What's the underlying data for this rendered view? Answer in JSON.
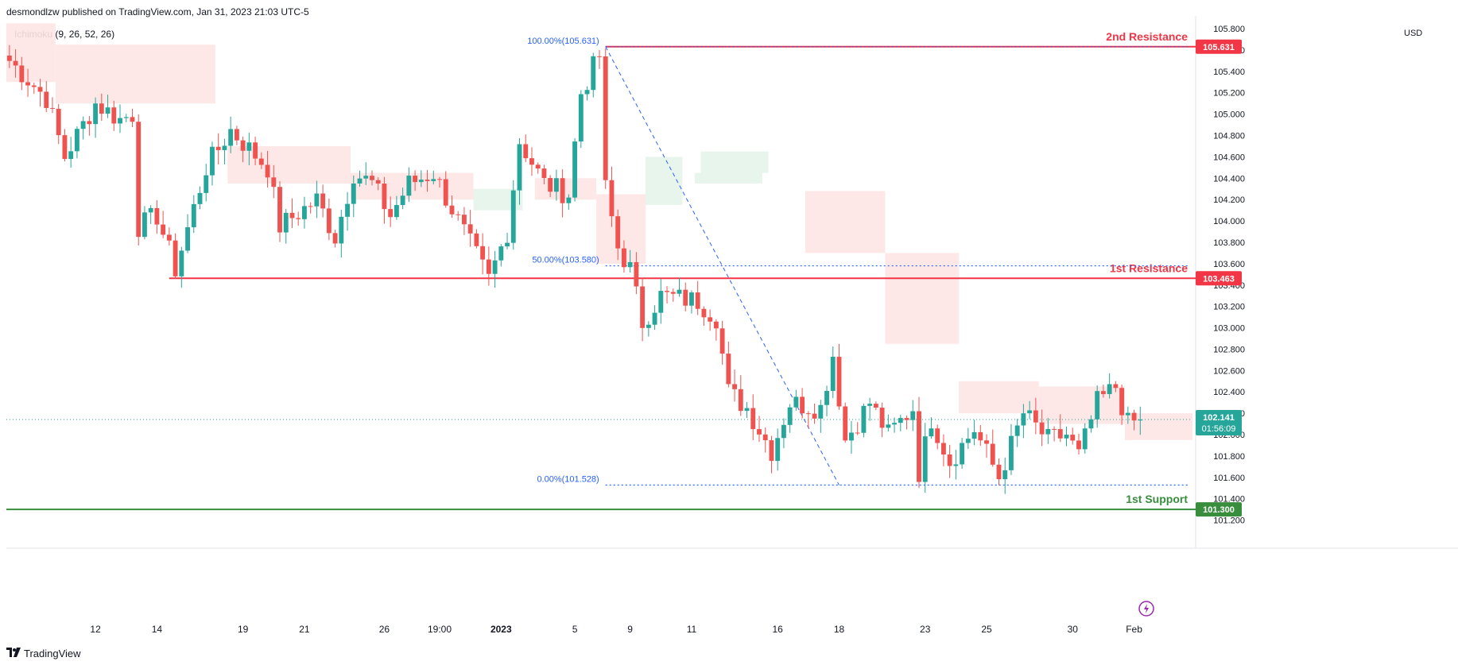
{
  "header": {
    "publisher": "desmondlzw published on TradingView.com, Jan 31, 2023 21:03 UTC-5"
  },
  "indicator": {
    "label": "Ichimoku (9, 26, 52, 26)"
  },
  "footer": {
    "brand": "TradingView",
    "logo_icon": "tradingview-logo-icon"
  },
  "colors": {
    "up": "#26a69a",
    "down": "#ef5350",
    "resistance": "#f23645",
    "support": "#388e3c",
    "fib": "#2962ff",
    "cloud_bear": "#fde4e4",
    "cloud_bull": "#e6f4ea",
    "grid": "#e0e3eb",
    "price_tag": "#26a69a"
  },
  "chart_data": {
    "type": "candlestick",
    "currency": "USD",
    "ylim": [
      101.2,
      105.9
    ],
    "y_ticks": [
      "105.800",
      "105.600",
      "105.400",
      "105.200",
      "105.000",
      "104.800",
      "104.600",
      "104.400",
      "104.200",
      "104.000",
      "103.800",
      "103.600",
      "103.400",
      "103.200",
      "103.000",
      "102.800",
      "102.600",
      "102.400",
      "102.200",
      "102.000",
      "101.800",
      "101.600",
      "101.400",
      "101.200"
    ],
    "x_ticks": [
      {
        "label": "12",
        "bar": 14,
        "bold": false
      },
      {
        "label": "14",
        "bar": 24,
        "bold": false
      },
      {
        "label": "19",
        "bar": 38,
        "bold": false
      },
      {
        "label": "21",
        "bar": 48,
        "bold": false
      },
      {
        "label": "26",
        "bar": 61,
        "bold": false
      },
      {
        "label": "19:00",
        "bar": 70,
        "bold": false
      },
      {
        "label": "2023",
        "bar": 80,
        "bold": true
      },
      {
        "label": "5",
        "bar": 92,
        "bold": false
      },
      {
        "label": "9",
        "bar": 101,
        "bold": false
      },
      {
        "label": "11",
        "bar": 111,
        "bold": false
      },
      {
        "label": "16",
        "bar": 125,
        "bold": false
      },
      {
        "label": "18",
        "bar": 135,
        "bold": false
      },
      {
        "label": "23",
        "bar": 149,
        "bold": false
      },
      {
        "label": "25",
        "bar": 159,
        "bold": false
      },
      {
        "label": "30",
        "bar": 173,
        "bold": false
      },
      {
        "label": "Feb",
        "bar": 183,
        "bold": false
      }
    ],
    "bar_count": 193,
    "last_price": "102.141",
    "countdown": "01:56:09",
    "current_price": 102.141,
    "levels": [
      {
        "name": "2nd Resistance",
        "value": 105.631,
        "tag": "105.631",
        "kind": "resistance",
        "from_bar": 97
      },
      {
        "name": "1st Resistance",
        "value": 103.463,
        "tag": "103.463",
        "kind": "resistance",
        "from_bar": 26
      },
      {
        "name": "1st Support",
        "value": 101.3,
        "tag": "101.300",
        "kind": "support",
        "from_bar": 0
      }
    ],
    "fibonacci": [
      {
        "label": "100.00%(105.631)",
        "value": 105.631
      },
      {
        "label": "50.00%(103.580)",
        "value": 103.58
      },
      {
        "label": "0.00%(101.528)",
        "value": 101.528
      }
    ],
    "fib_start_bar": 97,
    "fib_end_bar": 192,
    "fib_diagonal": {
      "from_bar": 97,
      "from_value": 105.631,
      "to_bar": 135,
      "to_value": 101.528
    },
    "anchors": [
      {
        "bar": 0,
        "value": 105.5
      },
      {
        "bar": 6,
        "value": 105.15
      },
      {
        "bar": 9,
        "value": 104.6
      },
      {
        "bar": 14,
        "value": 105.1
      },
      {
        "bar": 18,
        "value": 104.95
      },
      {
        "bar": 20,
        "value": 105.0
      },
      {
        "bar": 21,
        "value": 103.95
      },
      {
        "bar": 24,
        "value": 104.05
      },
      {
        "bar": 27,
        "value": 103.55
      },
      {
        "bar": 32,
        "value": 104.5
      },
      {
        "bar": 36,
        "value": 104.85
      },
      {
        "bar": 42,
        "value": 104.5
      },
      {
        "bar": 44,
        "value": 103.95
      },
      {
        "bar": 50,
        "value": 104.2
      },
      {
        "bar": 53,
        "value": 103.85
      },
      {
        "bar": 56,
        "value": 104.45
      },
      {
        "bar": 59,
        "value": 104.35
      },
      {
        "bar": 62,
        "value": 104.05
      },
      {
        "bar": 65,
        "value": 104.35
      },
      {
        "bar": 69,
        "value": 104.45
      },
      {
        "bar": 73,
        "value": 104.0
      },
      {
        "bar": 78,
        "value": 103.45
      },
      {
        "bar": 81,
        "value": 103.9
      },
      {
        "bar": 83,
        "value": 104.75
      },
      {
        "bar": 87,
        "value": 104.35
      },
      {
        "bar": 91,
        "value": 104.25
      },
      {
        "bar": 93,
        "value": 105.2
      },
      {
        "bar": 96,
        "value": 105.55
      },
      {
        "bar": 97,
        "value": 104.3
      },
      {
        "bar": 99,
        "value": 103.75
      },
      {
        "bar": 101,
        "value": 103.55
      },
      {
        "bar": 103,
        "value": 103.05
      },
      {
        "bar": 106,
        "value": 103.3
      },
      {
        "bar": 112,
        "value": 103.25
      },
      {
        "bar": 115,
        "value": 103.1
      },
      {
        "bar": 117,
        "value": 102.4
      },
      {
        "bar": 120,
        "value": 102.25
      },
      {
        "bar": 124,
        "value": 101.85
      },
      {
        "bar": 127,
        "value": 102.3
      },
      {
        "bar": 132,
        "value": 102.25
      },
      {
        "bar": 134,
        "value": 102.75
      },
      {
        "bar": 136,
        "value": 101.95
      },
      {
        "bar": 140,
        "value": 102.3
      },
      {
        "bar": 143,
        "value": 102.0
      },
      {
        "bar": 147,
        "value": 102.25
      },
      {
        "bar": 148,
        "value": 101.65
      },
      {
        "bar": 150,
        "value": 102.15
      },
      {
        "bar": 153,
        "value": 101.75
      },
      {
        "bar": 157,
        "value": 102.05
      },
      {
        "bar": 161,
        "value": 101.6
      },
      {
        "bar": 165,
        "value": 102.2
      },
      {
        "bar": 169,
        "value": 101.95
      },
      {
        "bar": 172,
        "value": 102.0
      },
      {
        "bar": 174,
        "value": 101.8
      },
      {
        "bar": 177,
        "value": 102.3
      },
      {
        "bar": 180,
        "value": 102.45
      },
      {
        "bar": 182,
        "value": 102.1
      },
      {
        "bar": 184,
        "value": 102.141
      }
    ],
    "cloud": [
      {
        "from_bar": 0,
        "to_bar": 8,
        "top": 105.85,
        "bottom": 105.3,
        "kind": "bear"
      },
      {
        "from_bar": 8,
        "to_bar": 34,
        "top": 105.65,
        "bottom": 105.1,
        "kind": "bear"
      },
      {
        "from_bar": 36,
        "to_bar": 56,
        "top": 104.7,
        "bottom": 104.35,
        "kind": "bear"
      },
      {
        "from_bar": 56,
        "to_bar": 76,
        "top": 104.45,
        "bottom": 104.2,
        "kind": "bear"
      },
      {
        "from_bar": 76,
        "to_bar": 84,
        "top": 104.3,
        "bottom": 104.1,
        "kind": "bull"
      },
      {
        "from_bar": 86,
        "to_bar": 96,
        "top": 104.4,
        "bottom": 104.2,
        "kind": "bear"
      },
      {
        "from_bar": 96,
        "to_bar": 104,
        "top": 104.25,
        "bottom": 103.6,
        "kind": "bear"
      },
      {
        "from_bar": 104,
        "to_bar": 110,
        "top": 104.6,
        "bottom": 104.15,
        "kind": "bull"
      },
      {
        "from_bar": 112,
        "to_bar": 123,
        "top": 104.35,
        "bottom": 104.45,
        "kind": "bull"
      },
      {
        "from_bar": 113,
        "to_bar": 124,
        "top": 104.65,
        "bottom": 104.45,
        "kind": "bull"
      },
      {
        "from_bar": 130,
        "to_bar": 143,
        "top": 104.28,
        "bottom": 103.7,
        "kind": "bear"
      },
      {
        "from_bar": 143,
        "to_bar": 155,
        "top": 103.7,
        "bottom": 102.85,
        "kind": "bear"
      },
      {
        "from_bar": 155,
        "to_bar": 168,
        "top": 102.5,
        "bottom": 102.2,
        "kind": "bear"
      },
      {
        "from_bar": 168,
        "to_bar": 182,
        "top": 102.45,
        "bottom": 102.1,
        "kind": "bear"
      },
      {
        "from_bar": 182,
        "to_bar": 193,
        "top": 102.2,
        "bottom": 101.95,
        "kind": "bear"
      }
    ]
  }
}
